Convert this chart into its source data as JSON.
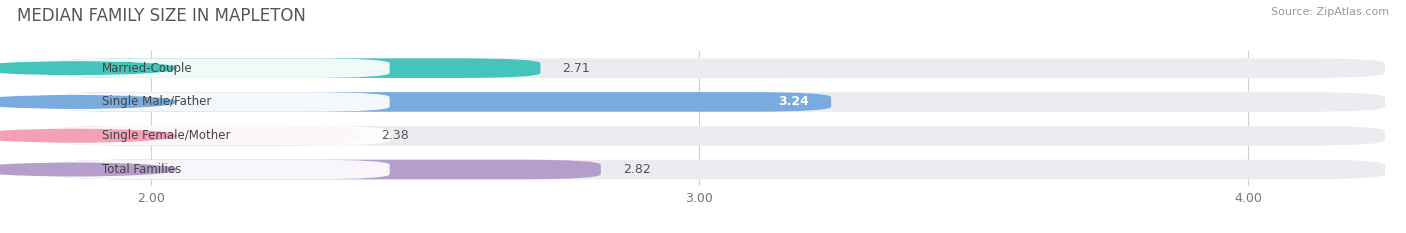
{
  "title": "MEDIAN FAMILY SIZE IN MAPLETON",
  "source": "Source: ZipAtlas.com",
  "categories": [
    "Married-Couple",
    "Single Male/Father",
    "Single Female/Mother",
    "Total Families"
  ],
  "values": [
    2.71,
    3.24,
    2.38,
    2.82
  ],
  "bar_colors": [
    "#45c4bc",
    "#7aabdf",
    "#f4a0b8",
    "#b59dcc"
  ],
  "value_inside": [
    false,
    true,
    false,
    false
  ],
  "xlim": [
    1.75,
    4.25
  ],
  "xstart": 1.82,
  "xticks": [
    2.0,
    3.0,
    4.0
  ],
  "xtick_labels": [
    "2.00",
    "3.00",
    "4.00"
  ],
  "bar_height": 0.58,
  "background_color": "#ffffff",
  "bar_bg_color": "#ebebf0",
  "figsize": [
    14.06,
    2.33
  ],
  "dpi": 100
}
